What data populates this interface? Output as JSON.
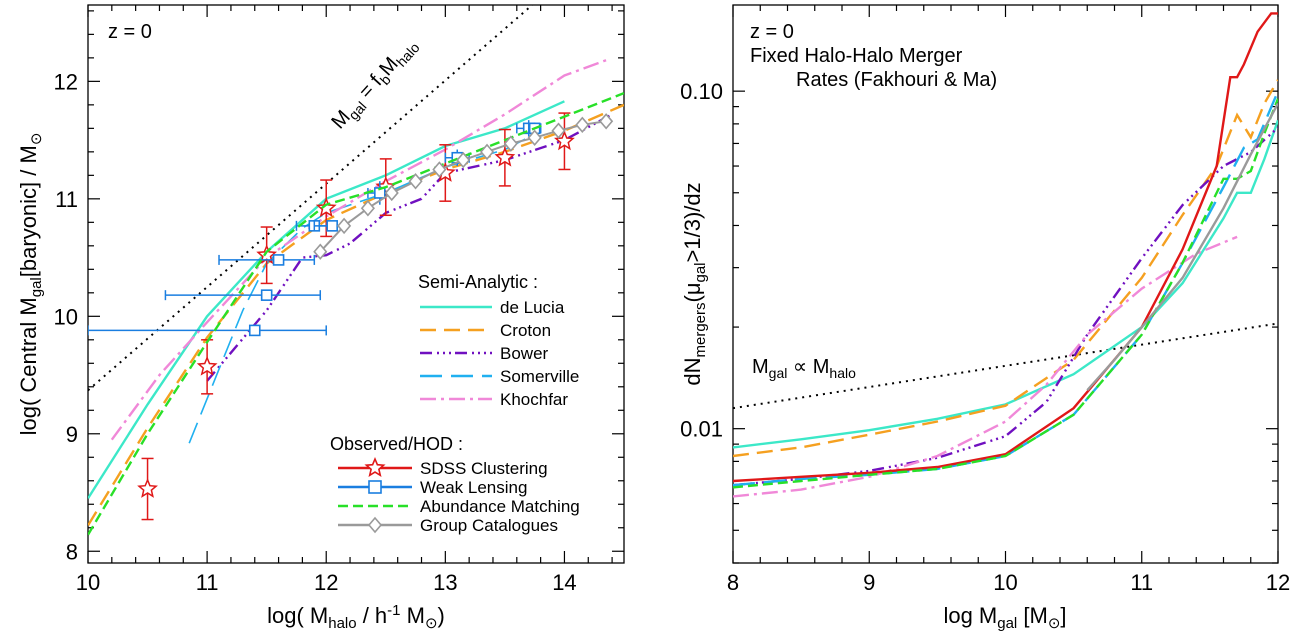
{
  "colors": {
    "delucia": "#3ce8c8",
    "croton": "#f5a020",
    "bower": "#7010c0",
    "somerville": "#20b0f0",
    "khochfar": "#f088d8",
    "sdss": "#e01818",
    "weaklensing": "#1a7ee0",
    "abundance": "#28e028",
    "group": "#9a9a9a",
    "reference": "#000000"
  },
  "chart_data": [
    {
      "type": "line",
      "xlabel_main": "log( M",
      "xlabel_sub": "halo",
      "xlabel_rest1": " / h",
      "xlabel_sup": "-1",
      "xlabel_rest2": " M",
      "xlabel_sun": "⊙",
      "xlabel_end": ")",
      "ylabel_main": "log( Central M",
      "ylabel_sub": "gal",
      "ylabel_rest": "[baryonic] / M",
      "ylabel_sun": "⊙",
      "xlim": [
        10,
        14.5
      ],
      "ylim": [
        7.9,
        12.65
      ],
      "xticks": [
        "10",
        "11",
        "12",
        "13",
        "14"
      ],
      "yticks": [
        "8",
        "9",
        "10",
        "11",
        "12"
      ],
      "annotation_z": "z = 0",
      "ref_label": {
        "main": "M",
        "sub1": "gal",
        "eq": " = f",
        "sub2": "b",
        "m2": "M",
        "sub3": "halo"
      },
      "legend_sa_title": "Semi-Analytic :",
      "legend_obs_title": "Observed/HOD :",
      "reference_line": {
        "x": [
          10,
          13.9
        ],
        "y": [
          9.37,
          12.8
        ]
      },
      "series": [
        {
          "name": "de Lucia",
          "key": "delucia",
          "dash": "",
          "x": [
            10,
            10.5,
            11,
            11.5,
            12,
            12.5,
            13,
            13.5,
            14
          ],
          "y": [
            8.45,
            9.25,
            10.0,
            10.55,
            11.0,
            11.2,
            11.45,
            11.6,
            11.83
          ]
        },
        {
          "name": "Croton",
          "key": "croton",
          "dash": "16,8",
          "x": [
            10,
            10.5,
            11,
            11.5,
            12,
            12.5,
            13,
            13.5,
            14,
            14.5
          ],
          "y": [
            8.22,
            9.05,
            9.82,
            10.45,
            10.82,
            11.05,
            11.25,
            11.4,
            11.58,
            11.8
          ]
        },
        {
          "name": "Bower",
          "key": "bower",
          "dash": "12,5,2,4,2,4,2,4",
          "x": [
            11,
            11.5,
            11.8,
            12.0,
            12.2,
            12.5,
            12.8,
            13.0,
            13.5,
            14.0,
            14.4
          ],
          "y": [
            9.45,
            10.05,
            10.5,
            10.52,
            10.62,
            10.88,
            11.0,
            11.22,
            11.33,
            11.5,
            11.72
          ]
        },
        {
          "name": "Somerville",
          "key": "somerville",
          "dash": "22,9",
          "x": [
            10.85,
            11.1,
            11.3,
            11.5,
            11.8,
            12.0,
            12.5,
            13.0,
            13.5,
            13.75
          ],
          "y": [
            8.92,
            9.55,
            10.05,
            10.45,
            10.75,
            10.88,
            11.05,
            11.27,
            11.42,
            11.55
          ]
        },
        {
          "name": "Khochfar",
          "key": "khochfar",
          "dash": "16,5,3,5",
          "x": [
            10.2,
            10.6,
            11.0,
            11.5,
            12.0,
            12.5,
            13.0,
            13.5,
            14.0,
            14.35
          ],
          "y": [
            8.95,
            9.5,
            9.95,
            10.5,
            10.85,
            11.15,
            11.42,
            11.72,
            12.05,
            12.18
          ]
        },
        {
          "name": "SDSS Clustering",
          "key": "sdss",
          "marker": "star",
          "x": [
            10.5,
            11.0,
            11.5,
            12.0,
            12.5,
            13.0,
            13.5,
            14.0
          ],
          "y": [
            8.53,
            9.57,
            10.52,
            10.92,
            11.1,
            11.22,
            11.35,
            11.49
          ],
          "yerr": [
            0.26,
            0.23,
            0.24,
            0.24,
            0.24,
            0.24,
            0.24,
            0.24
          ]
        },
        {
          "name": "Weak Lensing",
          "key": "weaklensing",
          "marker": "square",
          "x": [
            11.4,
            11.5,
            11.6,
            11.9,
            12.05,
            12.45,
            13.1,
            13.7,
            13.75
          ],
          "y": [
            9.88,
            10.18,
            10.48,
            10.77,
            10.77,
            11.05,
            11.35,
            11.6,
            11.6
          ],
          "xerr_lo": [
            1.4,
            0.85,
            0.5,
            0.15,
            0.15,
            0.1,
            0.1,
            0.1,
            0.05
          ],
          "xerr_hi": [
            0.6,
            0.45,
            0.3,
            0.15,
            0.1,
            0.1,
            0.1,
            0.1,
            0.05
          ],
          "yerr": [
            0,
            0,
            0,
            0,
            0,
            0.1,
            0.07,
            0.07,
            0.05
          ]
        },
        {
          "name": "Abundance Matching",
          "key": "abundance",
          "dash": "10,5",
          "x": [
            10,
            10.5,
            11,
            11.5,
            12,
            12.5,
            13,
            13.5,
            14,
            14.5
          ],
          "y": [
            8.14,
            9.0,
            9.78,
            10.55,
            10.95,
            11.1,
            11.3,
            11.5,
            11.7,
            11.9
          ]
        },
        {
          "name": "Group Catalogues",
          "key": "group",
          "marker": "diamond",
          "x": [
            11.95,
            12.15,
            12.35,
            12.55,
            12.75,
            12.95,
            13.15,
            13.35,
            13.55,
            13.75,
            13.95,
            14.15,
            14.35
          ],
          "y": [
            10.55,
            10.77,
            10.92,
            11.05,
            11.15,
            11.25,
            11.33,
            11.4,
            11.47,
            11.52,
            11.58,
            11.63,
            11.66
          ]
        }
      ]
    },
    {
      "type": "line",
      "xlabel": "log M",
      "xlabel_sub": "gal",
      "xlabel_rest": "  [M",
      "xlabel_sun": "⊙",
      "xlabel_end": "]",
      "ylabel_main": "dN",
      "ylabel_sub1": "mergers",
      "ylabel_mid": "(μ",
      "ylabel_sub2": "gal",
      "ylabel_rest": ">1/3)/dz",
      "xlim": [
        8,
        12
      ],
      "ylim_log": [
        0.004,
        0.18
      ],
      "yscale": "log",
      "xticks": [
        "8",
        "9",
        "10",
        "11",
        "12"
      ],
      "yticks_labeled": {
        "0.01": "0.01",
        "0.1": "0.10"
      },
      "annotation_z": "z = 0",
      "annotation_line1": "Fixed Halo-Halo Merger",
      "annotation_line2": "Rates (Fakhouri & Ma)",
      "ref_label": {
        "main": "M",
        "sub1": "gal",
        "prop": " ∝ M",
        "sub2": "halo"
      },
      "reference_line": {
        "x": [
          8,
          12
        ],
        "y": [
          0.0115,
          0.0205
        ]
      },
      "series": [
        {
          "name": "de Lucia",
          "key": "delucia",
          "dash": "",
          "x": [
            8,
            8.5,
            9,
            9.5,
            10,
            10.5,
            11,
            11.3,
            11.6,
            11.7,
            11.8,
            11.9,
            12
          ],
          "y": [
            0.0088,
            0.0093,
            0.0099,
            0.0107,
            0.0118,
            0.0145,
            0.02,
            0.027,
            0.042,
            0.05,
            0.05,
            0.063,
            0.082
          ]
        },
        {
          "name": "Croton",
          "key": "croton",
          "dash": "16,8",
          "x": [
            8,
            8.5,
            9,
            9.5,
            10,
            10.5,
            11,
            11.3,
            11.55,
            11.7,
            11.8,
            11.9,
            12
          ],
          "y": [
            0.0083,
            0.0088,
            0.0096,
            0.0105,
            0.0117,
            0.016,
            0.028,
            0.043,
            0.06,
            0.085,
            0.073,
            0.092,
            0.108
          ]
        },
        {
          "name": "Bower",
          "key": "bower",
          "dash": "12,5,2,4,2,4,2,4",
          "x": [
            8,
            8.5,
            9,
            9.5,
            10,
            10.3,
            10.6,
            11,
            11.3,
            11.6,
            11.8,
            12
          ],
          "y": [
            0.0068,
            0.0071,
            0.0075,
            0.0082,
            0.0095,
            0.012,
            0.019,
            0.032,
            0.046,
            0.06,
            0.066,
            0.078
          ]
        },
        {
          "name": "Somerville",
          "key": "somerville",
          "dash": "22,9",
          "x": [
            8,
            8.5,
            9,
            9.5,
            10,
            10.5,
            11,
            11.3,
            11.6,
            11.75,
            11.85,
            12
          ],
          "y": [
            0.0068,
            0.0071,
            0.0073,
            0.0076,
            0.0083,
            0.011,
            0.019,
            0.031,
            0.052,
            0.068,
            0.072,
            0.1
          ]
        },
        {
          "name": "Khochfar",
          "key": "khochfar",
          "dash": "16,5,3,5",
          "x": [
            8,
            8.5,
            9,
            9.5,
            10,
            10.3,
            10.6,
            11.0,
            11.4,
            11.7
          ],
          "y": [
            0.0063,
            0.0066,
            0.0072,
            0.0083,
            0.0105,
            0.0135,
            0.019,
            0.026,
            0.033,
            0.037
          ]
        },
        {
          "name": "SDSS Clustering",
          "key": "sdss",
          "dash": "",
          "x": [
            8,
            8.5,
            9,
            9.5,
            10,
            10.5,
            11,
            11.3,
            11.55,
            11.65,
            11.7,
            11.75,
            11.85,
            11.95,
            12
          ],
          "y": [
            0.007,
            0.0072,
            0.0074,
            0.0077,
            0.0084,
            0.0115,
            0.02,
            0.034,
            0.06,
            0.11,
            0.11,
            0.12,
            0.15,
            0.17,
            0.17
          ]
        },
        {
          "name": "Abundance Matching",
          "key": "abundance",
          "dash": "10,5",
          "x": [
            8,
            8.5,
            9,
            9.5,
            10,
            10.5,
            11,
            11.3,
            11.6,
            11.7,
            11.8,
            11.9,
            12
          ],
          "y": [
            0.0067,
            0.007,
            0.0073,
            0.0076,
            0.0083,
            0.011,
            0.019,
            0.031,
            0.055,
            0.055,
            0.058,
            0.075,
            0.095
          ]
        },
        {
          "name": "Group Catalogues",
          "key": "group",
          "dash": "",
          "x": [
            10.6,
            10.8,
            11,
            11.3,
            11.6,
            11.8,
            12
          ],
          "y": [
            0.013,
            0.016,
            0.02,
            0.028,
            0.045,
            0.065,
            0.092
          ]
        }
      ]
    }
  ]
}
